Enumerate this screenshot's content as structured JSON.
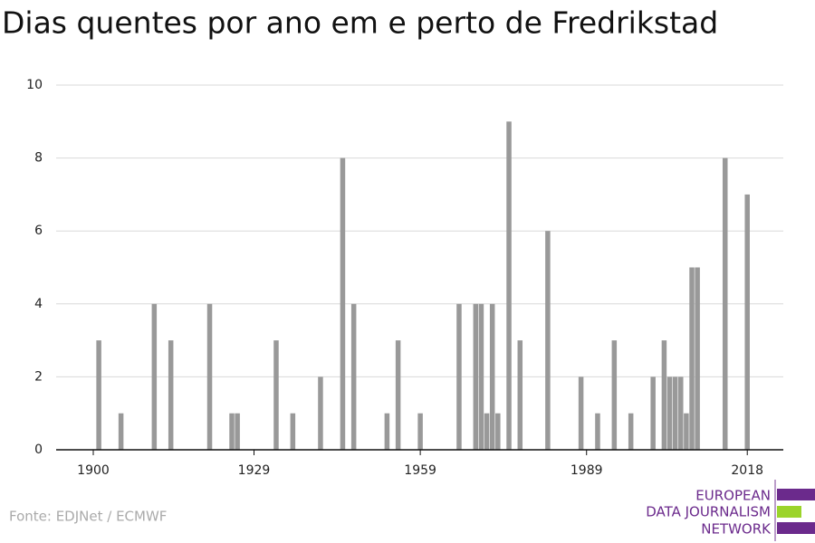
{
  "chart_data": {
    "type": "bar",
    "title": "Dias quentes por ano em e perto de Fredrikstad",
    "source": "Fonte: EDJNet / ECMWF",
    "logo": [
      "EUROPEAN",
      "DATA JOURNALISM",
      "NETWORK"
    ],
    "color": "#999999",
    "x": [
      1901,
      1905,
      1911,
      1914,
      1921,
      1925,
      1926,
      1933,
      1936,
      1941,
      1945,
      1947,
      1953,
      1955,
      1959,
      1966,
      1969,
      1970,
      1971,
      1972,
      1973,
      1975,
      1977,
      1982,
      1988,
      1991,
      1994,
      1997,
      2001,
      2003,
      2004,
      2005,
      2006,
      2007,
      2008,
      2009,
      2014,
      2018
    ],
    "values": [
      3,
      1,
      4,
      3,
      4,
      1,
      1,
      3,
      1,
      2,
      8,
      4,
      1,
      3,
      1,
      4,
      4,
      4,
      1,
      4,
      1,
      9,
      3,
      6,
      2,
      1,
      3,
      1,
      2,
      3,
      2,
      2,
      2,
      1,
      5,
      5,
      8,
      7
    ],
    "xlim": [
      1893.3,
      2024.5
    ],
    "xticks": [
      1900,
      1929,
      1959,
      1989,
      2018
    ],
    "ylim": [
      0,
      10
    ],
    "yticks": [
      0,
      2,
      4,
      6,
      8,
      10
    ],
    "grid": true
  }
}
